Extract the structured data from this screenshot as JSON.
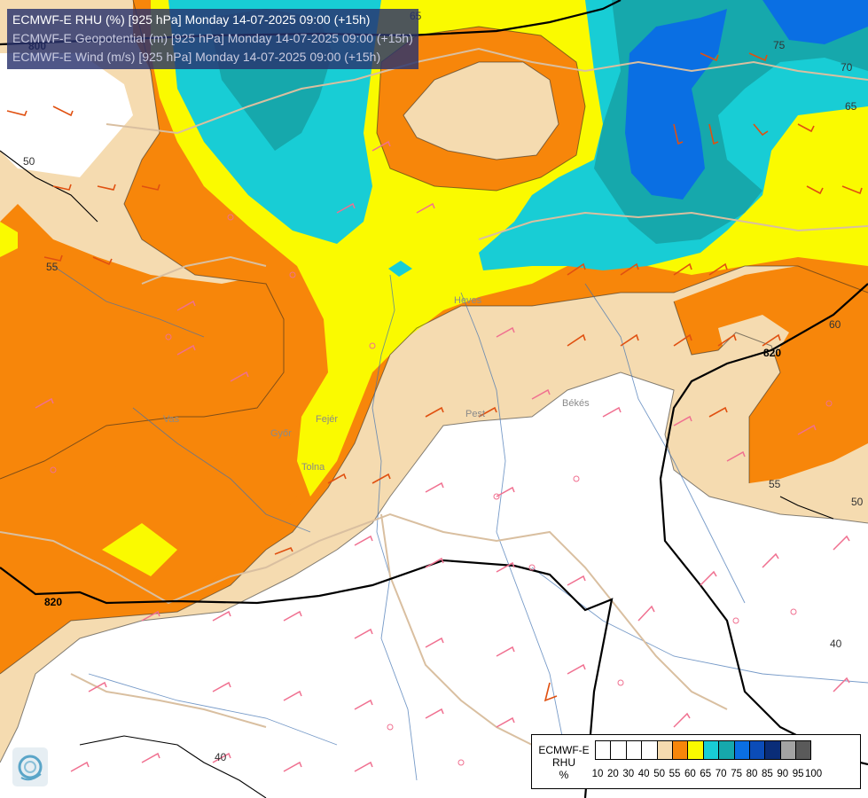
{
  "titles": [
    "ECMWF-E RHU (%) [925 hPa] Monday 14-07-2025 09:00 (+15h)",
    "ECMWF-E Geopotential (m) [925 hPa] Monday 14-07-2025 09:00 (+15h)",
    "ECMWF-E Wind (m/s) [925 hPa] Monday 14-07-2025 09:00 (+15h)"
  ],
  "legend": {
    "title_lines": [
      "ECMWF-E",
      "RHU",
      "%"
    ],
    "ticks": [
      "10",
      "20",
      "30",
      "40",
      "50",
      "55",
      "60",
      "65",
      "70",
      "75",
      "80",
      "85",
      "90",
      "95",
      "100"
    ],
    "colors": [
      "#ffffff",
      "#ffffff",
      "#ffffff",
      "#ffffff",
      "#f5dbb0",
      "#f7860a",
      "#fafa00",
      "#18cdd5",
      "#16a8ac",
      "#0a6fe3",
      "#0b4cb8",
      "#0a2d78",
      "#a3a3a3",
      "#5a5a5a"
    ]
  },
  "contour_labels": [
    "65",
    "75",
    "70",
    "65",
    "50",
    "55",
    "60",
    "820",
    "55",
    "50",
    "820",
    "800",
    "40",
    "40"
  ],
  "place_labels": [
    "Vas",
    "Győr",
    "Fejér",
    "Tolna",
    "Pest",
    "Békés",
    "Heves"
  ],
  "colors": {
    "rh_50_55": "#f5dbb0",
    "rh_55_60": "#f7860a",
    "rh_60_65": "#fafa00",
    "rh_65_70": "#18cdd5",
    "rh_70_75": "#16a8ac",
    "rh_75_80": "#0a6fe3",
    "border": "#d9bfa0",
    "river": "#3c6fb0",
    "wind_barb": "#f07090",
    "wind_barb_strong": "#e05010"
  }
}
